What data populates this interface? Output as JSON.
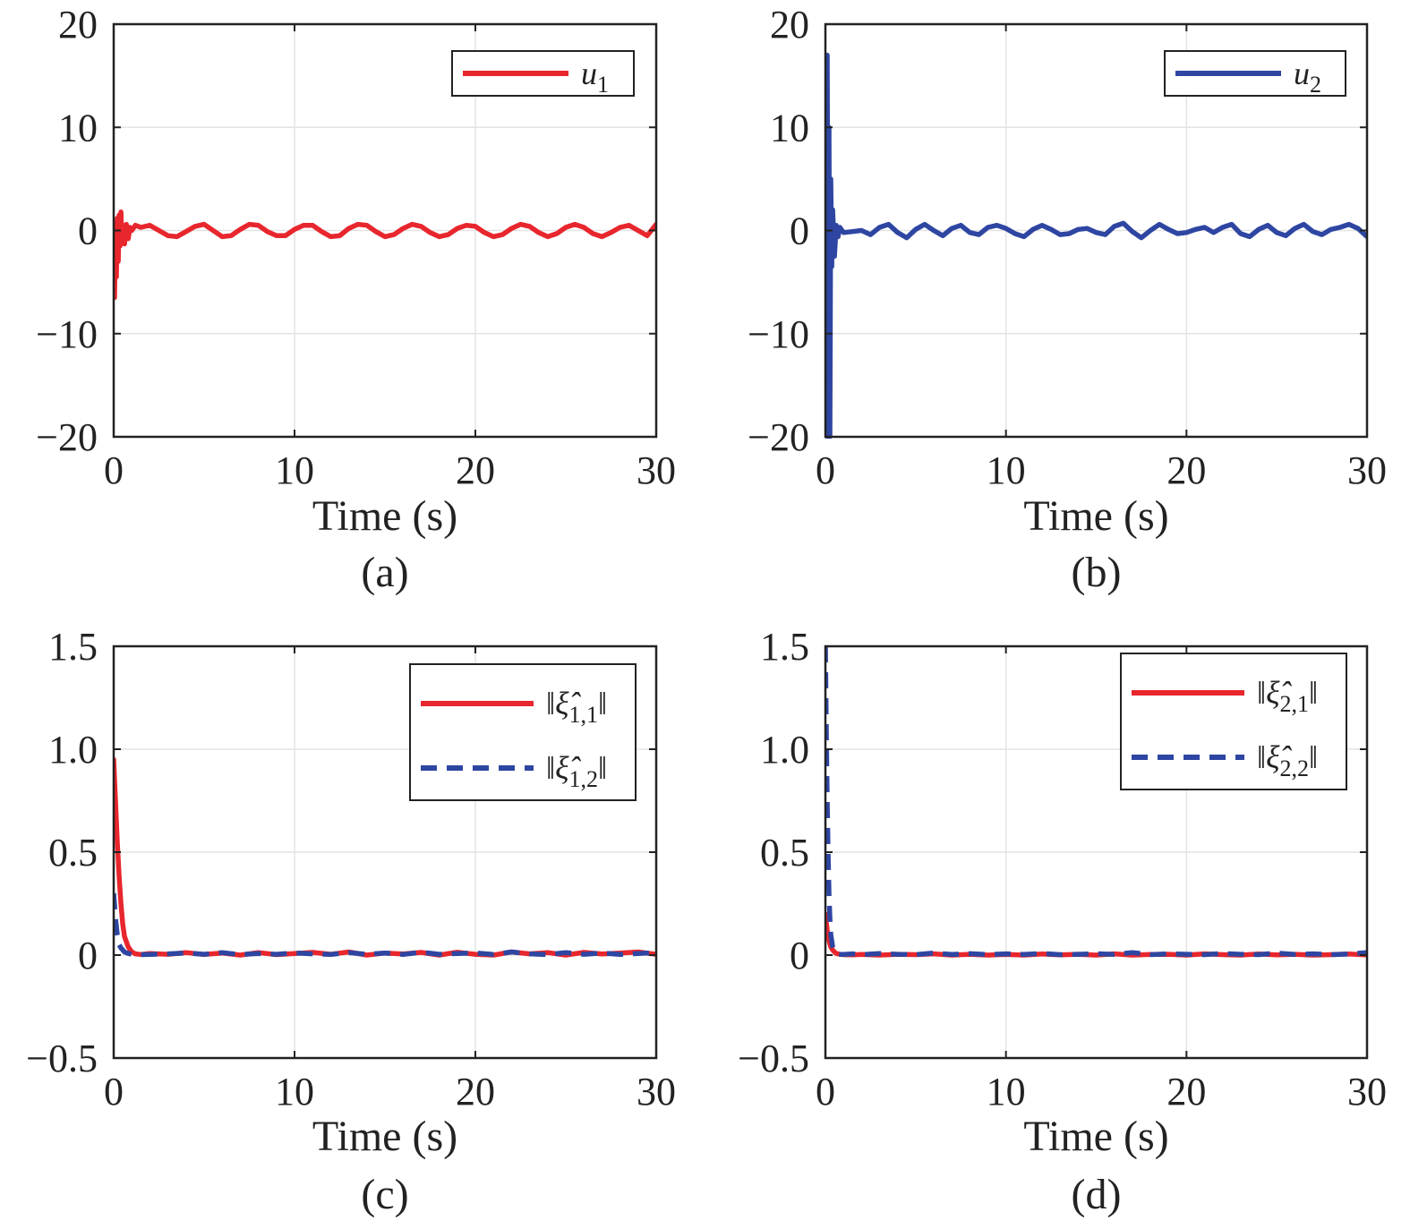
{
  "colors": {
    "red": "#e8262d",
    "blue": "#2e46a2",
    "grid": "#e3e3e3",
    "axis": "#222222"
  },
  "chart_data": [
    {
      "id": "a",
      "type": "line",
      "caption": "(a)",
      "xlabel": "Time (s)",
      "ylabel": "",
      "xlim": [
        0,
        30
      ],
      "ylim": [
        -20,
        20
      ],
      "xticks": [
        0,
        10,
        20,
        30
      ],
      "yticks": [
        20,
        10,
        0,
        -10,
        -20
      ],
      "ytick_labels": [
        "20",
        "10",
        "0",
        "−10",
        "−20"
      ],
      "xtick_labels": [
        "0",
        "10",
        "20",
        "30"
      ],
      "grid": true,
      "legend_position": "top-right",
      "series": [
        {
          "name": "u",
          "subscript": "1",
          "color": "#e8262d",
          "dash": false,
          "x": [
            0,
            0.05,
            0.1,
            0.15,
            0.2,
            0.25,
            0.3,
            0.35,
            0.4,
            0.45,
            0.5,
            0.6,
            0.7,
            0.8,
            0.9,
            1.0,
            1.2,
            1.5,
            2.0,
            2.5,
            3.0,
            3.5,
            4.0,
            4.5,
            5.0,
            5.5,
            6.0,
            6.5,
            7.0,
            7.5,
            8.0,
            8.5,
            9.0,
            9.5,
            10.0,
            10.5,
            11.0,
            11.5,
            12.0,
            12.5,
            13.0,
            13.5,
            14.0,
            14.5,
            15.0,
            15.5,
            16.0,
            16.5,
            17.0,
            17.5,
            18.0,
            18.5,
            19.0,
            19.5,
            20.0,
            20.5,
            21.0,
            21.5,
            22.0,
            22.5,
            23.0,
            23.5,
            24.0,
            24.5,
            25.0,
            25.5,
            26.0,
            26.5,
            27.0,
            27.5,
            28.0,
            28.5,
            29.0,
            29.5,
            30.0
          ],
          "y": [
            0.5,
            -6.5,
            0.8,
            -4.5,
            1.2,
            -3.0,
            1.5,
            -1.5,
            1.8,
            -0.8,
            0.5,
            -1.3,
            0.6,
            -0.8,
            0.3,
            0.0,
            0.5,
            0.3,
            0.5,
            0.0,
            -0.5,
            -0.6,
            -0.1,
            0.4,
            0.6,
            0.0,
            -0.6,
            -0.5,
            0.1,
            0.6,
            0.5,
            -0.1,
            -0.5,
            -0.5,
            0.1,
            0.5,
            0.5,
            -0.1,
            -0.6,
            -0.5,
            0.2,
            0.6,
            0.5,
            -0.1,
            -0.6,
            -0.4,
            0.2,
            0.6,
            0.4,
            -0.2,
            -0.6,
            -0.4,
            0.2,
            0.5,
            0.4,
            -0.2,
            -0.6,
            -0.4,
            0.2,
            0.6,
            0.4,
            -0.2,
            -0.6,
            -0.3,
            0.3,
            0.6,
            0.3,
            -0.3,
            -0.6,
            -0.2,
            0.3,
            0.5,
            0.0,
            -0.5,
            0.6
          ]
        }
      ]
    },
    {
      "id": "b",
      "type": "line",
      "caption": "(b)",
      "xlabel": "Time (s)",
      "ylabel": "",
      "xlim": [
        0,
        30
      ],
      "ylim": [
        -20,
        20
      ],
      "xticks": [
        0,
        10,
        20,
        30
      ],
      "yticks": [
        20,
        10,
        0,
        -10,
        -20
      ],
      "ytick_labels": [
        "20",
        "10",
        "0",
        "−10",
        "−20"
      ],
      "xtick_labels": [
        "0",
        "10",
        "20",
        "30"
      ],
      "grid": true,
      "legend_position": "top-right",
      "series": [
        {
          "name": "u",
          "subscript": "2",
          "color": "#2e46a2",
          "dash": false,
          "x": [
            0,
            0.05,
            0.1,
            0.15,
            0.2,
            0.25,
            0.3,
            0.35,
            0.4,
            0.5,
            0.6,
            0.7,
            0.8,
            1.0,
            1.5,
            2.0,
            2.5,
            3.0,
            3.5,
            4.0,
            4.5,
            5.0,
            5.5,
            6.0,
            6.5,
            7.0,
            7.5,
            8.0,
            8.5,
            9.0,
            9.5,
            10.0,
            10.5,
            11.0,
            11.5,
            12.0,
            12.5,
            13.0,
            13.5,
            14.0,
            14.5,
            15.0,
            15.5,
            16.0,
            16.5,
            17.0,
            17.5,
            18.0,
            18.5,
            19.0,
            19.5,
            20.0,
            20.5,
            21.0,
            21.5,
            22.0,
            22.5,
            23.0,
            23.5,
            24.0,
            24.5,
            25.0,
            25.5,
            26.0,
            26.5,
            27.0,
            27.5,
            28.0,
            28.5,
            29.0,
            29.5,
            30.0
          ],
          "y": [
            0,
            -20,
            17,
            -8,
            10,
            -20,
            5,
            -3.5,
            2.0,
            -2.5,
            0.5,
            -0.6,
            0.3,
            -0.2,
            -0.1,
            0.0,
            -0.4,
            0.3,
            0.6,
            -0.2,
            -0.7,
            0.1,
            0.6,
            0.0,
            -0.5,
            0.2,
            0.5,
            -0.2,
            -0.4,
            0.3,
            0.5,
            0.2,
            -0.3,
            -0.6,
            0.1,
            0.5,
            0.1,
            -0.4,
            -0.3,
            0.1,
            0.2,
            -0.2,
            -0.4,
            0.4,
            0.7,
            -0.1,
            -0.7,
            0.0,
            0.6,
            0.1,
            -0.3,
            -0.2,
            0.1,
            0.3,
            -0.2,
            0.3,
            0.6,
            -0.3,
            -0.6,
            0.1,
            0.5,
            -0.2,
            -0.5,
            0.2,
            0.6,
            -0.1,
            -0.4,
            0.1,
            0.3,
            0.6,
            0.2,
            -0.6
          ]
        }
      ]
    },
    {
      "id": "c",
      "type": "line",
      "caption": "(c)",
      "xlabel": "Time (s)",
      "ylabel": "",
      "xlim": [
        0,
        30
      ],
      "ylim": [
        -0.5,
        1.5
      ],
      "xticks": [
        0,
        10,
        20,
        30
      ],
      "yticks": [
        1.5,
        1.0,
        0.5,
        0,
        -0.5
      ],
      "ytick_labels": [
        "1.5",
        "1.0",
        "0.5",
        "0",
        "−0.5"
      ],
      "xtick_labels": [
        "0",
        "10",
        "20",
        "30"
      ],
      "grid": true,
      "legend_position": "top-right",
      "series": [
        {
          "name": "‖ξ̂",
          "subscript": "1,1",
          "suffix": "‖",
          "color": "#e8262d",
          "dash": false,
          "x": [
            0,
            0.1,
            0.2,
            0.3,
            0.4,
            0.5,
            0.6,
            0.8,
            1.0,
            1.2,
            1.5,
            2.0,
            3.0,
            4.0,
            5.0,
            6.0,
            7.0,
            8.0,
            9.0,
            10.0,
            11.0,
            12.0,
            13.0,
            14.0,
            15.0,
            16.0,
            17.0,
            18.0,
            19.0,
            20.0,
            21.0,
            22.0,
            23.0,
            24.0,
            25.0,
            26.0,
            27.0,
            28.0,
            29.0,
            30.0
          ],
          "y": [
            0.95,
            0.75,
            0.55,
            0.38,
            0.25,
            0.15,
            0.09,
            0.04,
            0.015,
            0.006,
            0.003,
            0.008,
            0.004,
            0.012,
            0.003,
            0.01,
            0.0,
            0.012,
            0.002,
            0.008,
            0.013,
            0.004,
            0.015,
            0.0,
            0.01,
            0.005,
            0.013,
            0.0,
            0.014,
            0.004,
            0.0,
            0.015,
            0.006,
            0.012,
            0.0,
            0.013,
            0.005,
            0.01,
            0.015,
            0.004
          ]
        },
        {
          "name": "‖ξ̂",
          "subscript": "1,2",
          "suffix": "‖",
          "color": "#2e46a2",
          "dash": true,
          "x": [
            0,
            0.1,
            0.2,
            0.3,
            0.4,
            0.5,
            0.6,
            0.8,
            1.0,
            1.5,
            2.0,
            3.0,
            4.0,
            5.0,
            6.0,
            7.0,
            8.0,
            9.0,
            10.0,
            11.0,
            12.0,
            13.0,
            14.0,
            15.0,
            16.0,
            17.0,
            18.0,
            19.0,
            20.0,
            21.0,
            22.0,
            23.0,
            24.0,
            25.0,
            26.0,
            27.0,
            28.0,
            29.0,
            30.0
          ],
          "y": [
            0.3,
            0.18,
            0.1,
            0.05,
            0.035,
            0.025,
            0.015,
            0.008,
            0.004,
            0.002,
            0.003,
            0.006,
            0.01,
            0.004,
            0.012,
            0.002,
            0.008,
            0.004,
            0.01,
            0.006,
            0.003,
            0.012,
            0.004,
            0.01,
            0.003,
            0.014,
            0.004,
            0.008,
            0.01,
            0.003,
            0.015,
            0.006,
            0.002,
            0.012,
            0.004,
            0.01,
            0.003,
            0.008,
            0.012
          ]
        }
      ]
    },
    {
      "id": "d",
      "type": "line",
      "caption": "(d)",
      "xlabel": "Time (s)",
      "ylabel": "",
      "xlim": [
        0,
        30
      ],
      "ylim": [
        -0.5,
        1.5
      ],
      "xticks": [
        0,
        10,
        20,
        30
      ],
      "yticks": [
        1.5,
        1.0,
        0.5,
        0,
        -0.5
      ],
      "ytick_labels": [
        "1.5",
        "1.0",
        "0.5",
        "0",
        "−0.5"
      ],
      "xtick_labels": [
        "0",
        "10",
        "20",
        "30"
      ],
      "grid": true,
      "legend_position": "top-right",
      "series": [
        {
          "name": "‖ξ̂",
          "subscript": "2,1",
          "suffix": "‖",
          "color": "#e8262d",
          "dash": false,
          "x": [
            0,
            0.1,
            0.2,
            0.3,
            0.4,
            0.5,
            0.6,
            0.8,
            1.0,
            1.5,
            2.0,
            3.0,
            4.0,
            5.0,
            6.0,
            7.0,
            8.0,
            9.0,
            10.0,
            11.0,
            12.0,
            13.0,
            14.0,
            15.0,
            16.0,
            17.0,
            18.0,
            19.0,
            20.0,
            21.0,
            22.0,
            23.0,
            24.0,
            25.0,
            26.0,
            27.0,
            28.0,
            29.0,
            30.0
          ],
          "y": [
            0.2,
            0.12,
            0.07,
            0.04,
            0.025,
            0.015,
            0.008,
            0.004,
            0.002,
            0.001,
            0.003,
            0.0,
            0.004,
            0.002,
            0.006,
            0.0,
            0.004,
            0.0,
            0.003,
            0.0,
            0.005,
            0.001,
            0.004,
            0.0,
            0.006,
            0.0,
            0.003,
            0.004,
            0.0,
            0.006,
            0.002,
            0.0,
            0.005,
            0.001,
            0.004,
            0.0,
            0.002,
            0.005,
            0.001
          ]
        },
        {
          "name": "‖ξ̂",
          "subscript": "2,2",
          "suffix": "‖",
          "color": "#2e46a2",
          "dash": true,
          "x": [
            0,
            0.05,
            0.1,
            0.15,
            0.2,
            0.25,
            0.3,
            0.4,
            0.5,
            0.6,
            0.8,
            1.0,
            1.5,
            2.0,
            3.0,
            4.0,
            5.0,
            6.0,
            7.0,
            8.0,
            9.0,
            10.0,
            11.0,
            12.0,
            13.0,
            14.0,
            15.0,
            16.0,
            17.0,
            18.0,
            19.0,
            20.0,
            21.0,
            22.0,
            23.0,
            24.0,
            25.0,
            26.0,
            27.0,
            28.0,
            29.0,
            30.0
          ],
          "y": [
            1.5,
            1.1,
            0.75,
            0.5,
            0.3,
            0.18,
            0.1,
            0.04,
            0.015,
            0.008,
            0.004,
            0.003,
            0.006,
            0.002,
            0.008,
            0.004,
            0.002,
            0.01,
            0.003,
            0.007,
            0.002,
            0.006,
            0.003,
            0.008,
            0.002,
            0.004,
            0.007,
            0.003,
            0.012,
            0.002,
            0.006,
            0.004,
            0.002,
            0.008,
            0.004,
            0.002,
            0.01,
            0.003,
            0.006,
            0.002,
            0.005,
            0.012
          ]
        }
      ]
    }
  ]
}
